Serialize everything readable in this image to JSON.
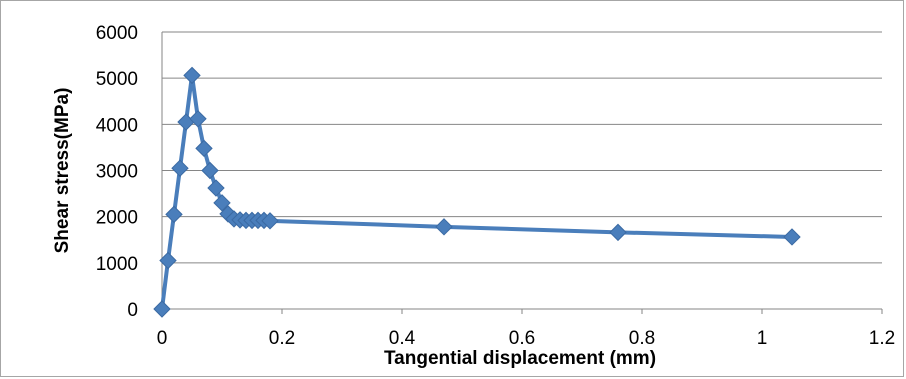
{
  "chart_data": {
    "type": "scatter",
    "title": "",
    "xlabel": "Tangential displacement (mm)",
    "ylabel": "Shear stress(MPa)",
    "xlim": [
      0,
      1.2
    ],
    "ylim": [
      0,
      6000
    ],
    "x_ticks": [
      "0",
      "0.2",
      "0.4",
      "0.6",
      "0.8",
      "1",
      "1.2"
    ],
    "y_ticks": [
      "0",
      "1000",
      "2000",
      "3000",
      "4000",
      "5000",
      "6000"
    ],
    "grid": "horizontal",
    "legend": "none",
    "marker": "diamond",
    "color": "#4a7ebb",
    "series": [
      {
        "x": [
          0,
          0.01,
          0.02,
          0.03,
          0.04,
          0.05,
          0.06,
          0.07,
          0.08,
          0.09,
          0.1,
          0.11,
          0.12,
          0.13,
          0.14,
          0.15,
          0.16,
          0.17,
          0.18,
          0.47,
          0.76,
          1.05
        ],
        "y": [
          0,
          1050,
          2050,
          3050,
          4050,
          5060,
          4120,
          3480,
          3000,
          2620,
          2300,
          2060,
          1950,
          1930,
          1920,
          1920,
          1920,
          1920,
          1910,
          1780,
          1660,
          1560
        ]
      }
    ]
  }
}
